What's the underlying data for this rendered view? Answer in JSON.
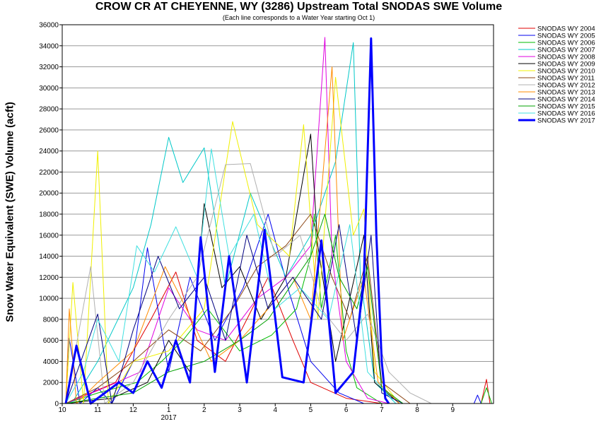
{
  "chart_data": {
    "type": "line",
    "title": "CROW CR AT CHEYENNE, WY (3286) Upstream Total SNODAS SWE Volume",
    "subtitle": "(Each line corresponds to a Water Year starting Oct 1)",
    "xlabel": "",
    "ylabel": "Snow Water Equivalent (SWE) Volume (acft)",
    "ylim": [
      0,
      36000
    ],
    "y_ticks": [
      "0",
      "2000",
      "4000",
      "6000",
      "8000",
      "10000",
      "12000",
      "14000",
      "16000",
      "18000",
      "20000",
      "22000",
      "24000",
      "26000",
      "28000",
      "30000",
      "32000",
      "34000",
      "36000"
    ],
    "x_ticks": [
      "10",
      "11",
      "12",
      "1",
      "2",
      "3",
      "4",
      "5",
      "6",
      "7",
      "8",
      "9"
    ],
    "x_year_label": "2017",
    "grid": "horizontal",
    "legend_position": "right",
    "series": [
      {
        "name": "SNODAS WY 2004",
        "color": "#e00000",
        "width": 1,
        "points": [
          [
            0.1,
            0
          ],
          [
            1.5,
            2000
          ],
          [
            2.5,
            8000
          ],
          [
            3.2,
            12500
          ],
          [
            3.8,
            6000
          ],
          [
            4.6,
            4000
          ],
          [
            5.2,
            8000
          ],
          [
            5.8,
            12000
          ],
          [
            6.5,
            6000
          ],
          [
            7.0,
            2000
          ],
          [
            8.0,
            500
          ],
          [
            9.0,
            0
          ],
          [
            11.8,
            0
          ],
          [
            11.95,
            2300
          ],
          [
            12.05,
            0
          ]
        ]
      },
      {
        "name": "SNODAS WY 2005",
        "color": "#0000ee",
        "width": 1,
        "points": [
          [
            0.1,
            0
          ],
          [
            0.2,
            6200
          ],
          [
            0.5,
            0
          ],
          [
            1.0,
            1500
          ],
          [
            1.4,
            0
          ],
          [
            2.0,
            4000
          ],
          [
            2.4,
            14800
          ],
          [
            3.0,
            3000
          ],
          [
            3.6,
            12000
          ],
          [
            4.3,
            6000
          ],
          [
            5.1,
            11000
          ],
          [
            5.8,
            18000
          ],
          [
            6.4,
            10500
          ],
          [
            7.0,
            4000
          ],
          [
            7.8,
            1000
          ],
          [
            8.5,
            0
          ],
          [
            11.6,
            0
          ],
          [
            11.7,
            800
          ],
          [
            11.8,
            0
          ]
        ]
      },
      {
        "name": "SNODAS WY 2006",
        "color": "#00bb00",
        "width": 1,
        "points": [
          [
            0.1,
            0
          ],
          [
            1.0,
            1000
          ],
          [
            2.1,
            2000
          ],
          [
            2.8,
            4000
          ],
          [
            3.4,
            6000
          ],
          [
            4.1,
            9000
          ],
          [
            5.0,
            5000
          ],
          [
            5.9,
            6500
          ],
          [
            6.6,
            9000
          ],
          [
            7.0,
            14000
          ],
          [
            7.1,
            18000
          ],
          [
            7.3,
            9000
          ],
          [
            7.7,
            16000
          ],
          [
            8.0,
            5000
          ],
          [
            8.3,
            1500
          ],
          [
            9.0,
            0
          ],
          [
            11.8,
            0
          ],
          [
            11.95,
            1500
          ],
          [
            12.1,
            0
          ]
        ]
      },
      {
        "name": "SNODAS WY 2007",
        "color": "#00c8c8",
        "width": 1,
        "points": [
          [
            0.1,
            0
          ],
          [
            0.3,
            200
          ],
          [
            1.0,
            4000
          ],
          [
            2.0,
            11000
          ],
          [
            2.5,
            17000
          ],
          [
            3.0,
            25300
          ],
          [
            3.4,
            21000
          ],
          [
            4.0,
            24300
          ],
          [
            4.6,
            11000
          ],
          [
            5.3,
            20000
          ],
          [
            6.3,
            12000
          ],
          [
            7.0,
            16000
          ],
          [
            7.7,
            23000
          ],
          [
            8.2,
            34300
          ],
          [
            8.4,
            12000
          ],
          [
            8.8,
            2000
          ],
          [
            9.4,
            0
          ]
        ]
      },
      {
        "name": "SNODAS WY 2008",
        "color": "#e000e0",
        "width": 1,
        "points": [
          [
            0.1,
            0
          ],
          [
            1.2,
            1500
          ],
          [
            2.2,
            3000
          ],
          [
            3.0,
            11000
          ],
          [
            3.8,
            7000
          ],
          [
            4.6,
            6000
          ],
          [
            5.5,
            10000
          ],
          [
            6.3,
            12000
          ],
          [
            7.0,
            15000
          ],
          [
            7.4,
            34800
          ],
          [
            7.6,
            14000
          ],
          [
            8.0,
            4000
          ],
          [
            8.6,
            500
          ],
          [
            9.2,
            0
          ]
        ]
      },
      {
        "name": "SNODAS WY 2009",
        "color": "#000000",
        "width": 1,
        "points": [
          [
            0.1,
            0
          ],
          [
            1.4,
            500
          ],
          [
            2.4,
            2000
          ],
          [
            3.0,
            6000
          ],
          [
            3.6,
            3000
          ],
          [
            4.0,
            19000
          ],
          [
            4.5,
            11000
          ],
          [
            5.0,
            13000
          ],
          [
            5.6,
            8000
          ],
          [
            6.3,
            12000
          ],
          [
            7.0,
            25600
          ],
          [
            7.2,
            15000
          ],
          [
            7.7,
            4000
          ],
          [
            8.5,
            16000
          ],
          [
            8.8,
            2000
          ],
          [
            9.5,
            0
          ]
        ]
      },
      {
        "name": "SNODAS WY 2010",
        "color": "#f0f000",
        "width": 1,
        "points": [
          [
            0.1,
            0
          ],
          [
            0.3,
            11500
          ],
          [
            0.6,
            0
          ],
          [
            1.0,
            24000
          ],
          [
            1.3,
            0
          ],
          [
            2.0,
            4000
          ],
          [
            3.0,
            5000
          ],
          [
            4.0,
            9000
          ],
          [
            4.8,
            26800
          ],
          [
            5.5,
            17000
          ],
          [
            6.4,
            14000
          ],
          [
            6.8,
            26500
          ],
          [
            7.2,
            8000
          ],
          [
            7.7,
            31000
          ],
          [
            8.2,
            16000
          ],
          [
            8.5,
            18500
          ],
          [
            8.8,
            3000
          ],
          [
            9.5,
            0
          ]
        ]
      },
      {
        "name": "SNODAS WY 2011",
        "color": "#8b4513",
        "width": 1,
        "points": [
          [
            0.1,
            0
          ],
          [
            1.0,
            1500
          ],
          [
            2.0,
            4000
          ],
          [
            3.0,
            7000
          ],
          [
            3.9,
            5000
          ],
          [
            4.8,
            9000
          ],
          [
            5.5,
            13000
          ],
          [
            6.3,
            15000
          ],
          [
            7.0,
            18000
          ],
          [
            7.6,
            12000
          ],
          [
            8.1,
            8000
          ],
          [
            8.6,
            14000
          ],
          [
            9.0,
            2000
          ],
          [
            9.8,
            0
          ]
        ]
      },
      {
        "name": "SNODAS WY 2012",
        "color": "#b0b0b0",
        "width": 1,
        "points": [
          [
            0.1,
            0
          ],
          [
            0.8,
            13000
          ],
          [
            1.2,
            0
          ],
          [
            2.0,
            2000
          ],
          [
            3.0,
            8000
          ],
          [
            3.8,
            12000
          ],
          [
            4.6,
            22700
          ],
          [
            5.3,
            22800
          ],
          [
            6.0,
            14000
          ],
          [
            6.7,
            16000
          ],
          [
            7.3,
            9000
          ],
          [
            8.0,
            6000
          ],
          [
            8.6,
            8500
          ],
          [
            9.2,
            3000
          ],
          [
            9.8,
            1000
          ],
          [
            10.4,
            0
          ]
        ]
      },
      {
        "name": "SNODAS WY 2013",
        "color": "#ff8c00",
        "width": 1,
        "points": [
          [
            0.1,
            0
          ],
          [
            0.2,
            9000
          ],
          [
            0.4,
            0
          ],
          [
            1.0,
            2000
          ],
          [
            2.0,
            5000
          ],
          [
            2.9,
            13000
          ],
          [
            3.5,
            9000
          ],
          [
            4.2,
            4000
          ],
          [
            5.0,
            6000
          ],
          [
            5.8,
            9000
          ],
          [
            6.5,
            12000
          ],
          [
            7.0,
            8000
          ],
          [
            7.6,
            32000
          ],
          [
            7.9,
            6000
          ],
          [
            8.5,
            12000
          ],
          [
            8.9,
            2000
          ],
          [
            9.5,
            0
          ]
        ]
      },
      {
        "name": "SNODAS WY 2014",
        "color": "#000080",
        "width": 1,
        "points": [
          [
            0.1,
            0
          ],
          [
            1.0,
            8500
          ],
          [
            1.4,
            0
          ],
          [
            2.0,
            7000
          ],
          [
            2.7,
            14000
          ],
          [
            3.3,
            9000
          ],
          [
            4.0,
            12000
          ],
          [
            4.6,
            6000
          ],
          [
            5.2,
            16000
          ],
          [
            5.8,
            9000
          ],
          [
            6.5,
            12000
          ],
          [
            7.3,
            8000
          ],
          [
            7.8,
            17000
          ],
          [
            8.3,
            6000
          ],
          [
            8.7,
            16000
          ],
          [
            9.0,
            1000
          ],
          [
            9.6,
            0
          ]
        ]
      },
      {
        "name": "SNODAS WY 2015",
        "color": "#00a000",
        "width": 1,
        "points": [
          [
            0.1,
            0
          ],
          [
            1.0,
            500
          ],
          [
            2.0,
            1000
          ],
          [
            3.0,
            3000
          ],
          [
            4.0,
            4000
          ],
          [
            5.0,
            6000
          ],
          [
            5.8,
            8000
          ],
          [
            6.4,
            11000
          ],
          [
            7.0,
            14000
          ],
          [
            7.4,
            18000
          ],
          [
            7.8,
            12000
          ],
          [
            8.3,
            9000
          ],
          [
            8.6,
            13000
          ],
          [
            9.0,
            1500
          ],
          [
            9.6,
            0
          ]
        ]
      },
      {
        "name": "SNODAS WY 2016",
        "color": "#40e0e0",
        "width": 1,
        "points": [
          [
            0.1,
            0
          ],
          [
            0.6,
            3000
          ],
          [
            1.0,
            8000
          ],
          [
            1.6,
            4000
          ],
          [
            2.1,
            15000
          ],
          [
            2.6,
            12500
          ],
          [
            3.2,
            16800
          ],
          [
            3.8,
            12000
          ],
          [
            4.2,
            24200
          ],
          [
            4.7,
            14000
          ],
          [
            5.4,
            18000
          ],
          [
            6.0,
            9000
          ],
          [
            6.7,
            11000
          ],
          [
            7.5,
            8000
          ],
          [
            8.1,
            17000
          ],
          [
            8.6,
            3000
          ],
          [
            9.4,
            0
          ]
        ]
      },
      {
        "name": "SNODAS WY 2017",
        "color": "#0000ff",
        "width": 3,
        "points": [
          [
            0.1,
            0
          ],
          [
            0.4,
            5500
          ],
          [
            0.8,
            0
          ],
          [
            1.6,
            2000
          ],
          [
            2.0,
            1000
          ],
          [
            2.4,
            4000
          ],
          [
            2.8,
            1500
          ],
          [
            3.2,
            6000
          ],
          [
            3.6,
            2000
          ],
          [
            3.9,
            15800
          ],
          [
            4.3,
            3000
          ],
          [
            4.7,
            14000
          ],
          [
            5.2,
            2000
          ],
          [
            5.7,
            16500
          ],
          [
            6.2,
            2500
          ],
          [
            6.8,
            2000
          ],
          [
            7.3,
            15500
          ],
          [
            7.7,
            1000
          ],
          [
            8.2,
            3000
          ],
          [
            8.5,
            12000
          ],
          [
            8.7,
            34700
          ],
          [
            8.85,
            16000
          ],
          [
            9.0,
            4000
          ],
          [
            9.1,
            500
          ],
          [
            9.2,
            0
          ]
        ]
      }
    ]
  }
}
